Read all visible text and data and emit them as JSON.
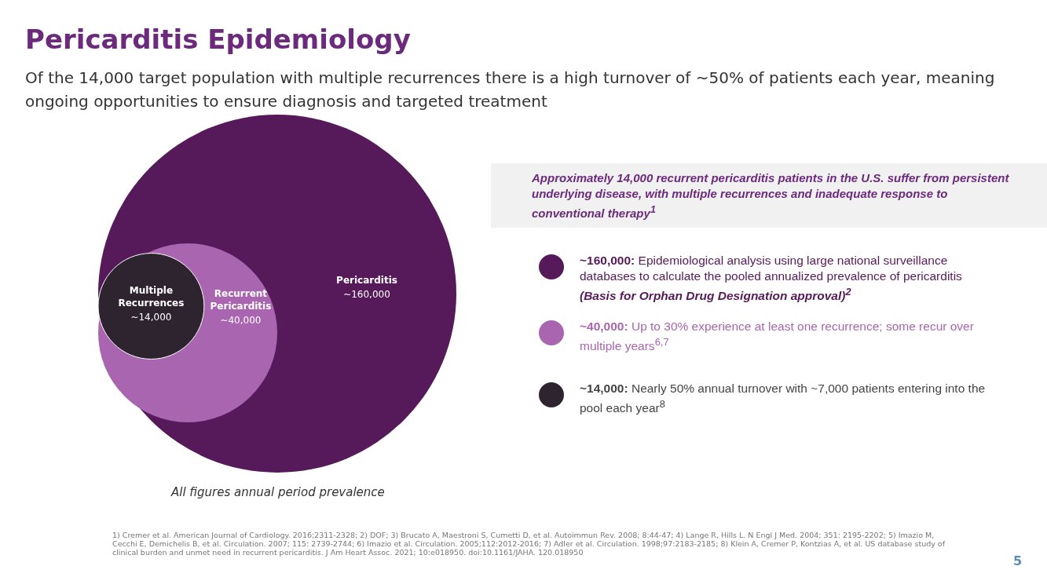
{
  "chart_data": {
    "type": "other",
    "title": "Pericarditis Epidemiology",
    "subtitle": "Of the 14,000 target population with multiple recurrences there is a high turnover of ~50% of patients each year, meaning ongoing opportunities to ensure diagnosis and targeted treatment",
    "categories": [
      "Pericarditis",
      "Recurrent Pericarditis",
      "Multiple Recurrences"
    ],
    "values": [
      160000,
      40000,
      14000
    ],
    "value_labels": [
      "~160,000",
      "~40,000",
      "~14,000"
    ],
    "colors": [
      "#561a5a",
      "#a965b0",
      "#2e2430"
    ],
    "annotations": [
      "Approximately 14,000 recurrent pericarditis patients in the U.S. suffer from persistent underlying disease, with multiple recurrences and inadequate response to conventional therapy$^{1}$",
      "~160,000: Epidemiological analysis using large national surveillance databases to calculate the pooled annualized prevalence of pericarditis (Basis for Orphan Drug Designation approval)$^{2}$",
      "~40,000: Up to 30% experience at least one recurrence; some recur over multiple years$^{6,7}$",
      "~14,000: Nearly 50% annual turnover with ~7,000 patients entering into the pool each year$^{8}$",
      "All figures annual period prevalence",
      "1) Cremer et al. American Journal of Cardiology. 2016;2311-2328; 2) DOF; 3) Brucato A, Maestroni S, Cumetti D, et al. Autoimmun Rev. 2008; 8:44-47; 4) Lange R, Hills L. N Engl J Med. 2004; 351: 2195-2202; 5) Imazio M, Cecchi E, Demichelis B, et al. Circulation. 2007; 115: 2739-2744; 6) Imazio et al. Circulation. 2005;112:2012-2016; 7) Adler et al. Circulation. 1998;97:2183-2185; 8) Klein A, Cremer P, Kontzias A, et al. US database study of clinical burden and unmet need in recurrent pericarditis. J Am Heart Assoc. 2021; 10:e018950. doi:10.1161/JAHA. 120.018950",
      "5"
    ]
  }
}
